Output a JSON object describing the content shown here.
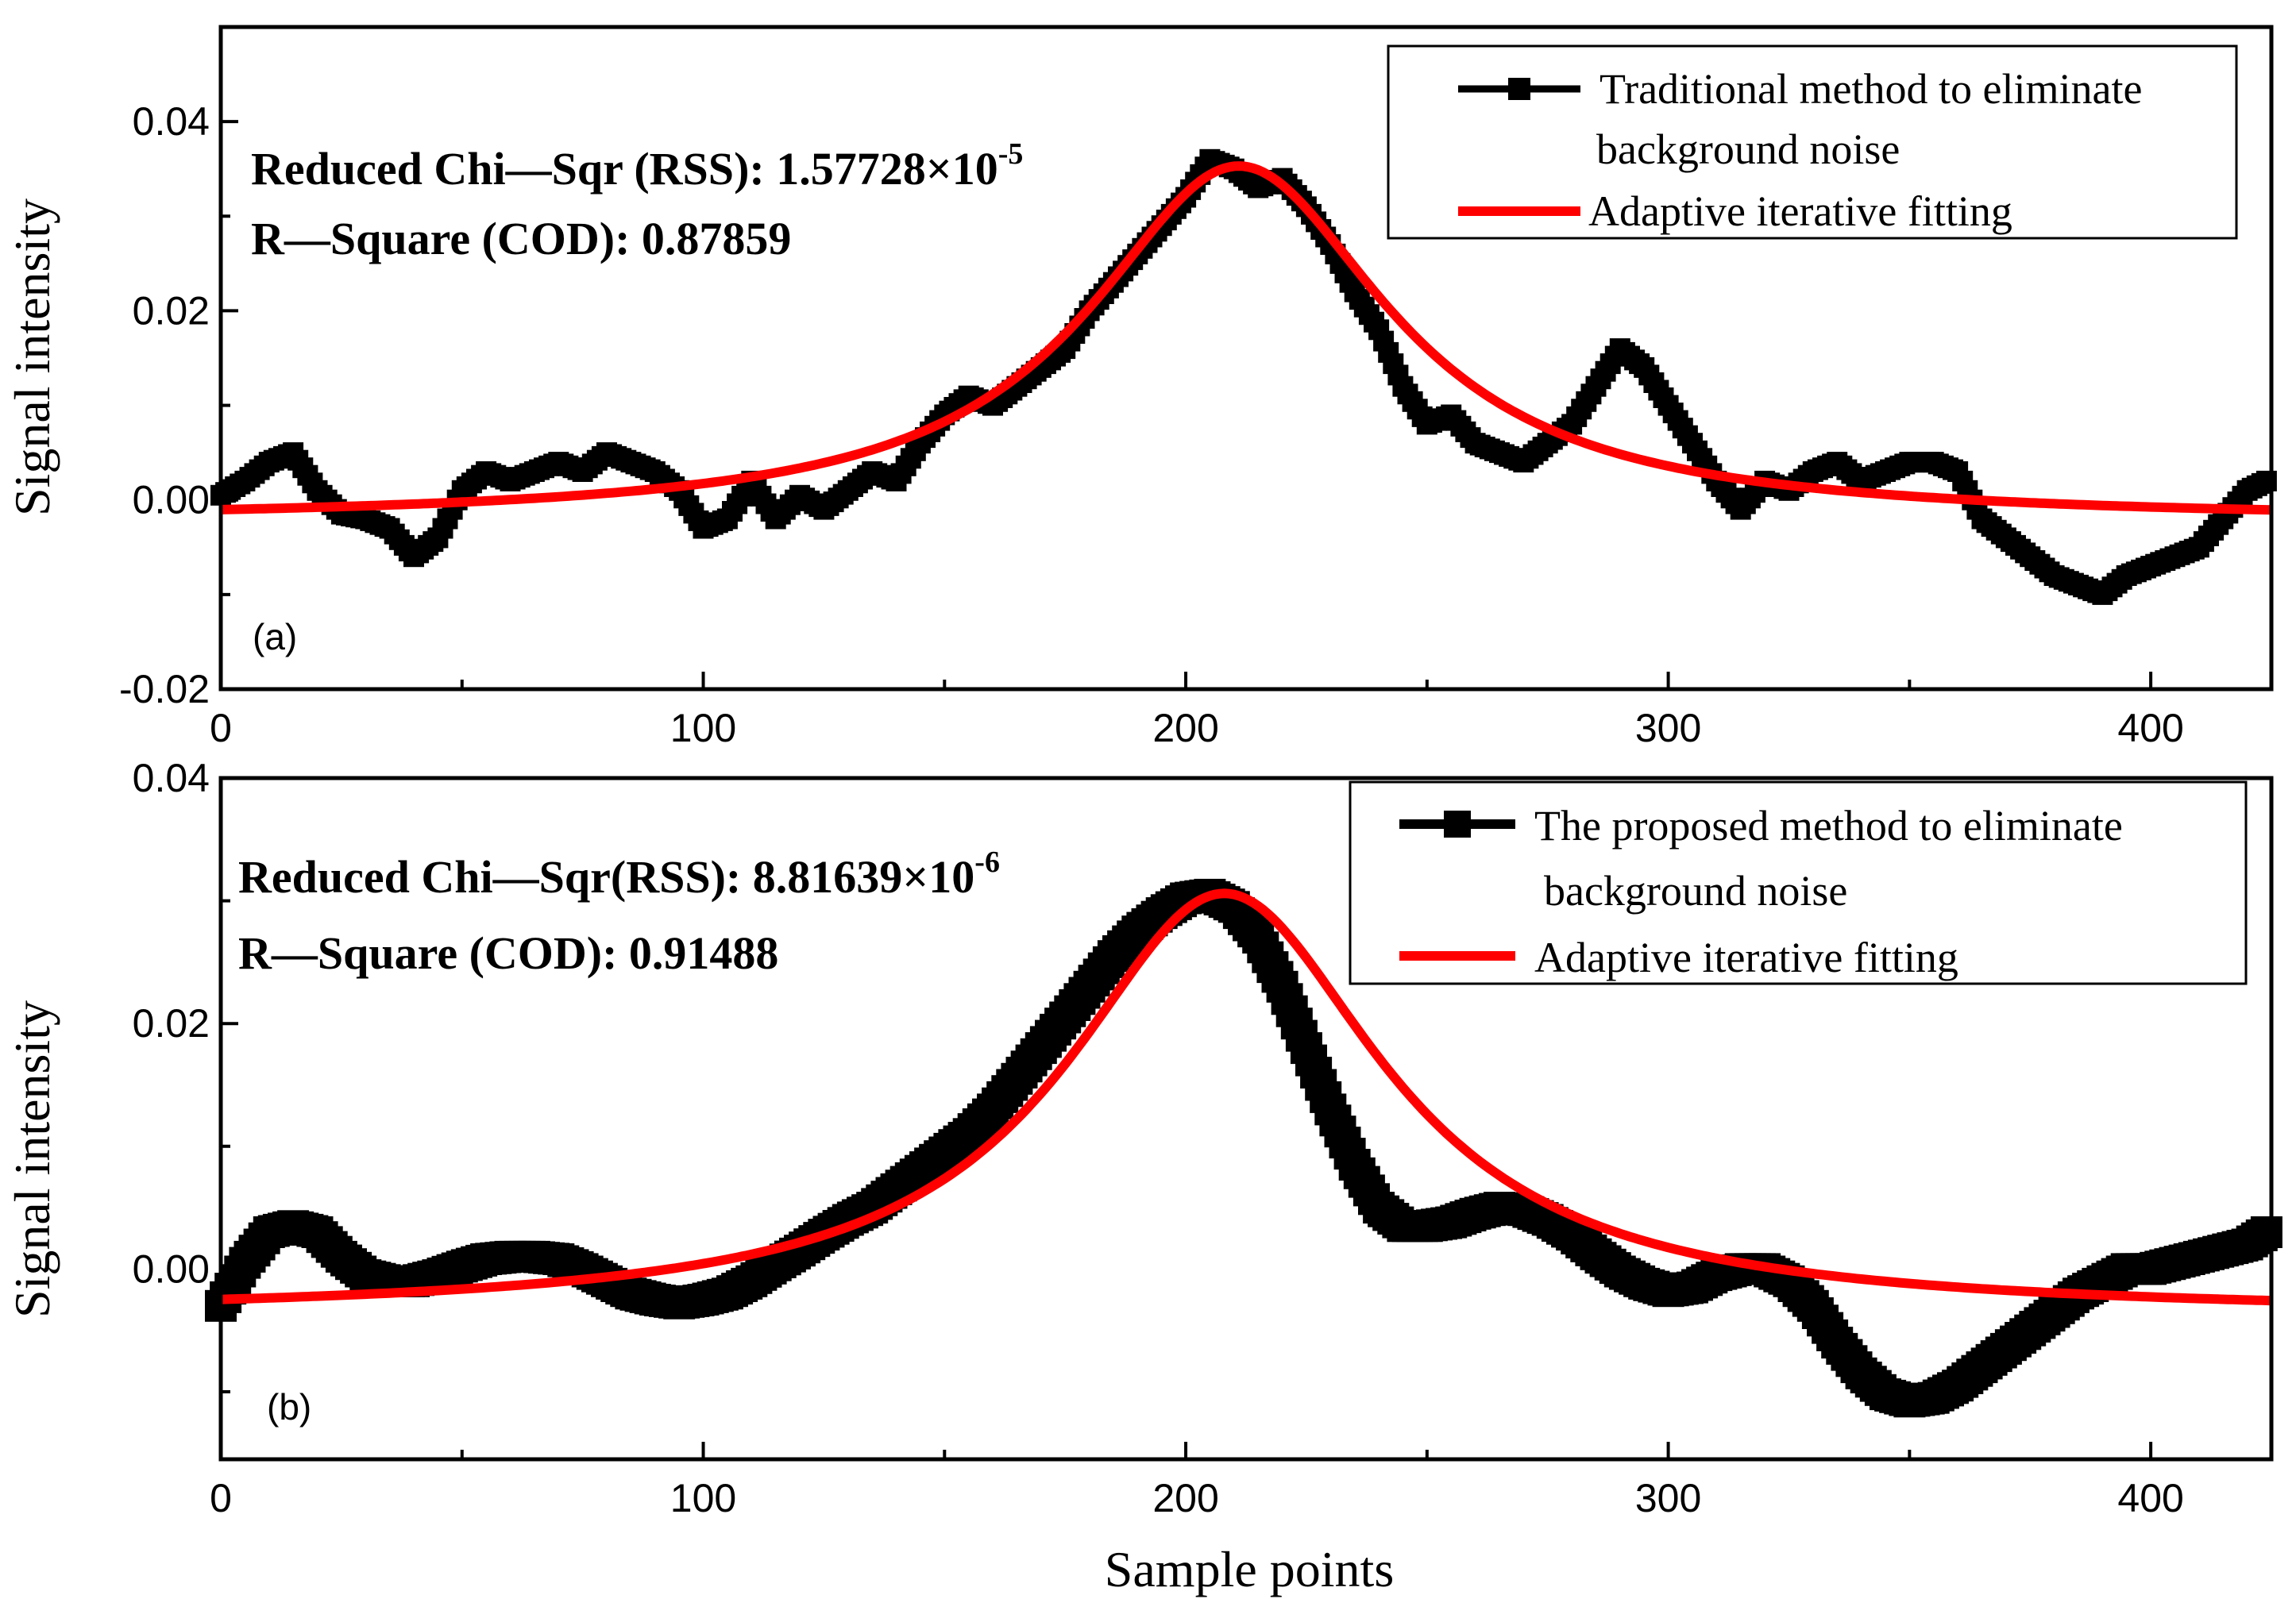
{
  "figure": {
    "xlabel": "Sample points"
  },
  "chart_data": [
    {
      "type": "line",
      "panel_label": "(a)",
      "xlabel": "",
      "ylabel": "Signal intensity",
      "xlim": [
        0,
        425
      ],
      "ylim": [
        -0.02,
        0.05
      ],
      "xticks": [
        0,
        100,
        200,
        300,
        400
      ],
      "xtick_labels": [
        "0",
        "100",
        "200",
        "300",
        "400"
      ],
      "yticks": [
        -0.02,
        0.0,
        0.02,
        0.04
      ],
      "ytick_labels": [
        "-0.02",
        "0.00",
        "0.02",
        "0.04"
      ],
      "annotations": {
        "chi_label": "Reduced Chi—Sqr (RSS): 1.57728×10",
        "chi_exp": "-5",
        "r2_label": "R—Square (COD): 0.87859"
      },
      "legend": {
        "placement": "top-right",
        "entries": [
          {
            "line1": "Traditional method to eliminate",
            "line2": "background noise",
            "color": "#000000",
            "marker": "square"
          },
          {
            "line1": "Adaptive iterative fitting",
            "line2": "",
            "color": "#ff0000",
            "marker": "none"
          }
        ]
      },
      "series": [
        {
          "name": "Traditional method to eliminate background noise",
          "color": "#000000",
          "style": "markers",
          "x": [
            0,
            5,
            10,
            15,
            20,
            25,
            30,
            35,
            40,
            45,
            50,
            55,
            60,
            65,
            70,
            75,
            80,
            85,
            90,
            95,
            100,
            105,
            110,
            115,
            120,
            125,
            130,
            135,
            140,
            145,
            150,
            155,
            160,
            165,
            170,
            175,
            180,
            185,
            190,
            195,
            200,
            205,
            210,
            215,
            220,
            225,
            230,
            235,
            240,
            245,
            250,
            255,
            260,
            265,
            270,
            275,
            280,
            285,
            290,
            295,
            300,
            305,
            310,
            315,
            320,
            325,
            330,
            335,
            340,
            345,
            350,
            355,
            360,
            365,
            370,
            375,
            380,
            385,
            390,
            395,
            400,
            405,
            410,
            415,
            420,
            424
          ],
          "y": [
            0.0005,
            0.002,
            0.004,
            0.005,
            0.001,
            -0.0015,
            -0.002,
            -0.003,
            -0.006,
            -0.004,
            0.001,
            0.003,
            0.002,
            0.003,
            0.004,
            0.003,
            0.005,
            0.004,
            0.003,
            0.001,
            -0.003,
            -0.002,
            0.002,
            -0.002,
            0.0005,
            -0.001,
            0.001,
            0.003,
            0.002,
            0.006,
            0.009,
            0.011,
            0.01,
            0.012,
            0.014,
            0.016,
            0.02,
            0.023,
            0.026,
            0.029,
            0.032,
            0.036,
            0.035,
            0.033,
            0.034,
            0.031,
            0.027,
            0.022,
            0.018,
            0.012,
            0.008,
            0.009,
            0.006,
            0.005,
            0.004,
            0.006,
            0.008,
            0.012,
            0.016,
            0.014,
            0.01,
            0.006,
            0.002,
            -0.001,
            0.002,
            0.001,
            0.003,
            0.004,
            0.002,
            0.003,
            0.004,
            0.004,
            0.003,
            -0.002,
            -0.004,
            -0.006,
            -0.008,
            -0.009,
            -0.01,
            -0.008,
            -0.007,
            -0.006,
            -0.005,
            -0.002,
            0.001,
            0.002
          ]
        },
        {
          "name": "Adaptive iterative fitting",
          "color": "#ff0000",
          "style": "line",
          "model": "lorentzian",
          "params": {
            "baseline": -0.0022,
            "amplitude": 0.0375,
            "center": 211,
            "width": 38
          }
        }
      ]
    },
    {
      "type": "line",
      "panel_label": "(b)",
      "xlabel": "Sample points",
      "ylabel": "Signal intensity",
      "xlim": [
        0,
        425
      ],
      "ylim": [
        -0.0155,
        0.04
      ],
      "xticks": [
        0,
        100,
        200,
        300,
        400
      ],
      "xtick_labels": [
        "0",
        "100",
        "200",
        "300",
        "400"
      ],
      "yticks": [
        0.0,
        0.02,
        0.04
      ],
      "ytick_labels": [
        "0.00",
        "0.02",
        "0.04"
      ],
      "annotations": {
        "chi_label": "Reduced Chi—Sqr(RSS): 8.81639×10",
        "chi_exp": "-6",
        "r2_label": "R—Square (COD): 0.91488"
      },
      "legend": {
        "placement": "top-right",
        "entries": [
          {
            "line1": "The proposed method to eliminate",
            "line2": "background noise",
            "color": "#000000",
            "marker": "square"
          },
          {
            "line1": "Adaptive iterative fitting",
            "line2": "",
            "color": "#ff0000",
            "marker": "none"
          }
        ]
      },
      "series": [
        {
          "name": "The proposed method to eliminate background noise",
          "color": "#000000",
          "style": "markers",
          "x": [
            0,
            5,
            10,
            15,
            20,
            25,
            30,
            35,
            40,
            45,
            50,
            55,
            60,
            65,
            70,
            75,
            80,
            85,
            90,
            95,
            100,
            105,
            110,
            115,
            120,
            125,
            130,
            135,
            140,
            145,
            150,
            155,
            160,
            165,
            170,
            175,
            180,
            185,
            190,
            195,
            200,
            205,
            210,
            215,
            220,
            225,
            230,
            235,
            240,
            245,
            250,
            255,
            260,
            265,
            270,
            275,
            280,
            285,
            290,
            295,
            300,
            305,
            310,
            315,
            320,
            325,
            330,
            335,
            340,
            345,
            350,
            355,
            360,
            365,
            370,
            375,
            380,
            385,
            390,
            395,
            400,
            405,
            410,
            415,
            420,
            424
          ],
          "y": [
            -0.003,
            0.0005,
            0.003,
            0.0035,
            0.003,
            0.001,
            -0.0005,
            -0.001,
            -0.001,
            -0.0005,
            0.0002,
            0.0008,
            0.001,
            0.001,
            0.0008,
            0.0,
            -0.001,
            -0.002,
            -0.0025,
            -0.0028,
            -0.0025,
            -0.002,
            -0.001,
            0.0003,
            0.0015,
            0.0028,
            0.004,
            0.005,
            0.0065,
            0.008,
            0.0095,
            0.011,
            0.013,
            0.0155,
            0.018,
            0.0205,
            0.023,
            0.0255,
            0.0275,
            0.029,
            0.0302,
            0.0305,
            0.0295,
            0.027,
            0.023,
            0.018,
            0.013,
            0.0085,
            0.005,
            0.0035,
            0.0035,
            0.0038,
            0.0045,
            0.005,
            0.0048,
            0.004,
            0.0028,
            0.0012,
            -0.0002,
            -0.0012,
            -0.0018,
            -0.0015,
            -0.0005,
            0.0,
            0.0,
            -0.001,
            -0.003,
            -0.006,
            -0.0085,
            -0.0102,
            -0.0108,
            -0.0105,
            -0.0095,
            -0.008,
            -0.0065,
            -0.005,
            -0.0035,
            -0.002,
            -0.001,
            0.0,
            0.0,
            0.0005,
            0.001,
            0.0015,
            0.002,
            0.003
          ]
        },
        {
          "name": "Adaptive iterative fitting",
          "color": "#ff0000",
          "style": "line",
          "model": "lorentzian",
          "params": {
            "baseline": -0.0037,
            "amplitude": 0.0343,
            "center": 208,
            "width": 40
          }
        }
      ]
    }
  ]
}
